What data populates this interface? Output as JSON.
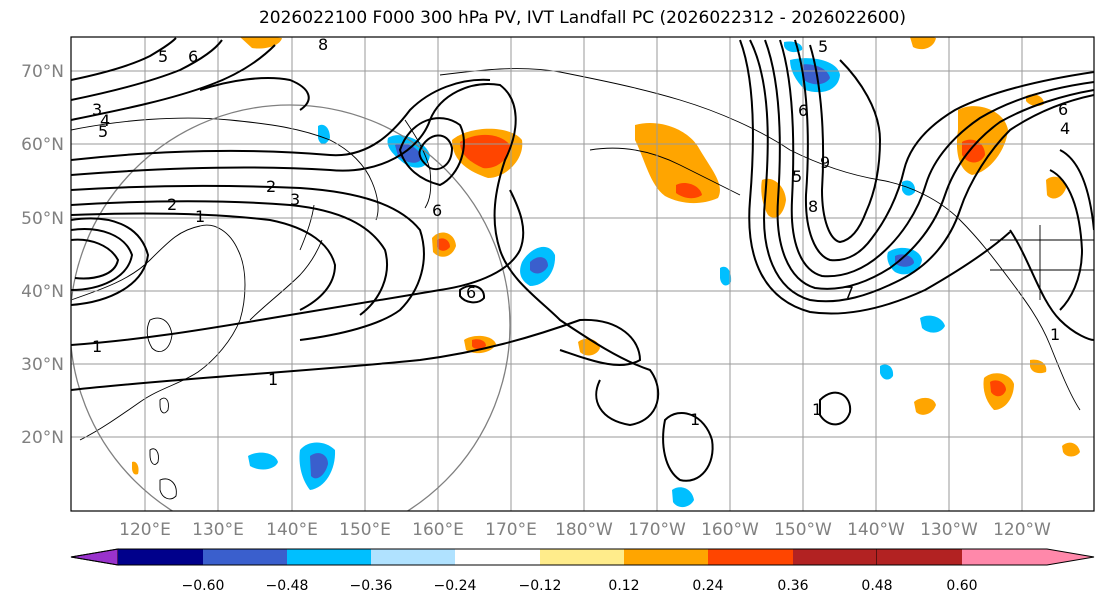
{
  "title": "2026022100 F000 300 hPa PV, IVT Landfall PC (2026022312 - 2026022600)",
  "lat_labels": [
    "70°N",
    "60°N",
    "50°N",
    "40°N",
    "30°N",
    "20°N"
  ],
  "lon_labels": [
    "120°E",
    "130°E",
    "140°E",
    "150°E",
    "160°E",
    "170°E",
    "180°W",
    "170°W",
    "160°W",
    "150°W",
    "140°W",
    "130°W",
    "120°W"
  ],
  "colorbar": {
    "ticks": [
      "−0.60",
      "−0.48",
      "−0.36",
      "−0.24",
      "−0.12",
      "0.12",
      "0.24",
      "0.36",
      "0.48",
      "0.60"
    ],
    "colors": [
      "#9932CC",
      "#00008B",
      "#3A5FCD",
      "#00BFFF",
      "#B0E2FF",
      "#FFFFFF",
      "#FFEC8B",
      "#FFA500",
      "#FF4500",
      "#B22222",
      "#FF88AA"
    ]
  },
  "contour_labels": [
    "5",
    "6",
    "8",
    "3",
    "4",
    "5",
    "2",
    "1",
    "3",
    "2",
    "6",
    "1",
    "1",
    "6",
    "5",
    "8",
    "9",
    "6",
    "5",
    "4",
    "6",
    "7",
    "1",
    "1",
    "1"
  ]
}
